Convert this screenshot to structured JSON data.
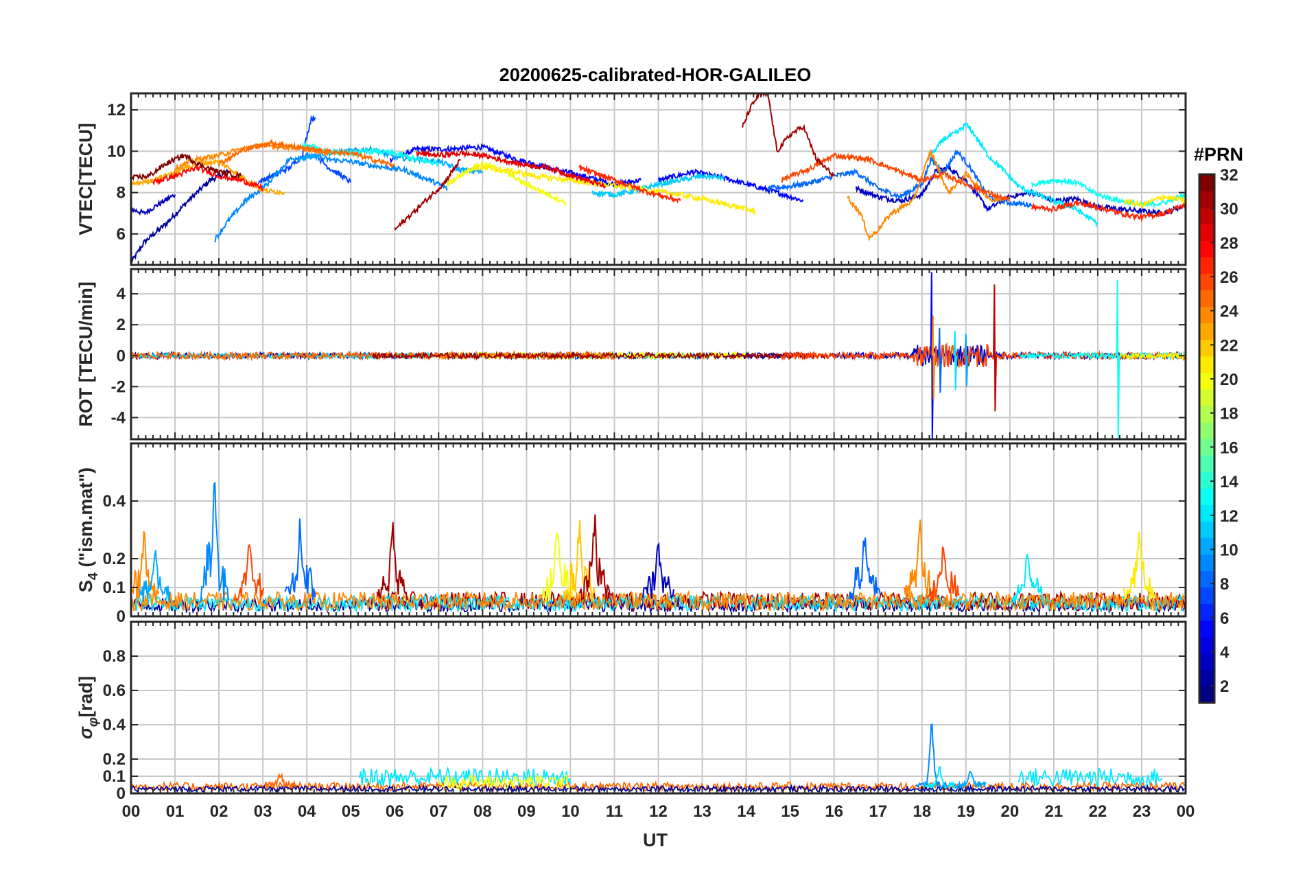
{
  "title": "20200625-calibrated-HOR-GALILEO",
  "xlabel": "UT",
  "colorbar": {
    "title": "#PRN",
    "ticks": [
      "2",
      "4",
      "6",
      "8",
      "10",
      "12",
      "14",
      "16",
      "18",
      "20",
      "22",
      "24",
      "26",
      "28",
      "30",
      "32"
    ],
    "range": [
      1,
      32
    ],
    "colormap": "jet"
  },
  "chart_data": [
    {
      "type": "line",
      "panel": "VTEC",
      "ylabel": "VTEC[TECU]",
      "ylim": [
        4.5,
        12.8
      ],
      "yticks": [
        6,
        8,
        10,
        12
      ],
      "yticklabels": [
        "6",
        "8",
        "10",
        "12"
      ],
      "xlim": [
        0,
        24
      ],
      "xticklabels": [
        "00",
        "01",
        "02",
        "03",
        "04",
        "05",
        "06",
        "07",
        "08",
        "09",
        "10",
        "11",
        "12",
        "13",
        "14",
        "15",
        "16",
        "17",
        "18",
        "19",
        "20",
        "21",
        "22",
        "23",
        "00"
      ],
      "grid": true,
      "series": [
        {
          "prn": 2,
          "x": [
            0,
            0.3,
            0.8,
            1.3,
            1.8,
            2.2
          ],
          "y": [
            4.6,
            5.6,
            6.5,
            7.6,
            8.6,
            9.0
          ]
        },
        {
          "prn": 3,
          "x": [
            0,
            0.3,
            0.6,
            1.0
          ],
          "y": [
            7.2,
            7.0,
            7.4,
            7.9
          ]
        },
        {
          "prn": 5,
          "x": [
            5.9,
            6.5,
            7.2,
            8.0,
            8.8,
            9.5,
            10.3,
            11.0,
            11.6
          ],
          "y": [
            9.6,
            10.1,
            10.1,
            10.2,
            9.6,
            9.2,
            8.8,
            8.4,
            8.6
          ]
        },
        {
          "prn": 5,
          "x": [
            12.0,
            12.8,
            13.5,
            14.2,
            14.7,
            15.3
          ],
          "y": [
            8.6,
            9.0,
            8.7,
            8.3,
            8.0,
            7.6
          ]
        },
        {
          "prn": 3,
          "x": [
            16.5,
            17.0,
            17.5,
            18.0,
            18.3,
            18.6,
            19.0,
            19.5,
            20.0,
            20.5,
            21.0,
            21.5,
            22.0,
            22.5,
            23.0,
            23.5,
            24.0
          ],
          "y": [
            8.2,
            7.8,
            7.6,
            7.9,
            9.0,
            9.2,
            8.6,
            7.2,
            7.8,
            8.0,
            7.6,
            7.7,
            7.3,
            7.2,
            7.1,
            7.0,
            7.4
          ]
        },
        {
          "prn": 7,
          "x": [
            2.9,
            3.3,
            3.6,
            3.9,
            4.1,
            4.2
          ],
          "y": [
            8.5,
            8.9,
            9.2,
            9.8,
            11.6,
            11.6
          ]
        },
        {
          "prn": 7,
          "x": [
            4.3,
            4.5,
            4.8,
            5.0
          ],
          "y": [
            9.6,
            9.2,
            8.8,
            8.5
          ]
        },
        {
          "prn": 8,
          "x": [
            14.5,
            15.0,
            15.5,
            16.0,
            16.5,
            17.0,
            17.5,
            18.0,
            18.2,
            18.5,
            18.8,
            19.1,
            19.5,
            20.0,
            20.5
          ],
          "y": [
            8.2,
            8.3,
            8.5,
            8.8,
            9.0,
            8.2,
            7.8,
            8.4,
            9.6,
            9.0,
            10.0,
            9.2,
            7.8,
            7.5,
            7.4
          ]
        },
        {
          "prn": 9,
          "x": [
            1.9,
            2.2,
            2.6,
            3.1,
            3.6,
            4.0,
            4.5,
            5.0,
            5.5,
            6.2,
            6.8,
            7.2
          ],
          "y": [
            5.7,
            6.6,
            7.6,
            8.4,
            9.6,
            9.8,
            9.6,
            9.5,
            9.3,
            9.1,
            8.6,
            8.2
          ]
        },
        {
          "prn": 10,
          "x": [
            3.8,
            4.4,
            5.0,
            5.5,
            6.0,
            6.5,
            7.0,
            7.5,
            8.0
          ],
          "y": [
            9.6,
            9.9,
            10.0,
            10.1,
            9.7,
            9.6,
            9.5,
            9.1,
            9.0
          ]
        },
        {
          "prn": 11,
          "x": [
            10.5,
            11.0,
            11.5,
            12.0,
            12.5,
            13.0,
            13.5
          ],
          "y": [
            8.0,
            7.9,
            8.1,
            8.4,
            8.6,
            8.8,
            8.7
          ]
        },
        {
          "prn": 12,
          "x": [
            18.2,
            18.5,
            18.8,
            19.0,
            19.2,
            19.5,
            19.8,
            20.2,
            20.6,
            21.0,
            21.5,
            22.0
          ],
          "y": [
            9.8,
            10.6,
            10.9,
            11.3,
            10.8,
            9.8,
            9.2,
            8.3,
            7.9,
            7.6,
            7.2,
            6.5
          ]
        },
        {
          "prn": 13,
          "x": [
            3.9,
            4.5,
            5.0,
            5.5,
            6.0,
            6.5,
            7.0
          ],
          "y": [
            10.3,
            10.0,
            9.9,
            10.0,
            9.9,
            9.6,
            9.4
          ]
        },
        {
          "prn": 13,
          "x": [
            20.5,
            21.0,
            21.5,
            22.0,
            22.5,
            23.0,
            23.5,
            24.0
          ],
          "y": [
            8.4,
            8.6,
            8.5,
            7.9,
            7.6,
            7.4,
            7.5,
            7.9
          ]
        },
        {
          "prn": 20,
          "x": [
            7.2,
            7.6,
            8.0,
            8.5,
            9.0,
            9.5,
            9.9
          ],
          "y": [
            8.4,
            9.0,
            9.4,
            9.0,
            8.4,
            7.9,
            7.5
          ]
        },
        {
          "prn": 21,
          "x": [
            7.8,
            8.5,
            9.2,
            10.0,
            10.7,
            11.2,
            11.8,
            12.5,
            13.2,
            13.8,
            14.2
          ],
          "y": [
            9.2,
            9.1,
            8.8,
            8.6,
            8.4,
            8.3,
            8.1,
            7.9,
            7.6,
            7.3,
            7.1
          ]
        },
        {
          "prn": 21,
          "x": [
            22.6,
            23.0,
            23.5,
            24.0
          ],
          "y": [
            7.6,
            7.4,
            7.8,
            7.6
          ]
        },
        {
          "prn": 23,
          "x": [
            0,
            0.5,
            1.0,
            1.5,
            2.0,
            2.5,
            3.0,
            3.5
          ],
          "y": [
            8.4,
            8.6,
            9.0,
            9.4,
            9.5,
            8.8,
            8.1,
            8.0
          ]
        },
        {
          "prn": 24,
          "x": [
            1.0,
            1.5,
            2.0,
            2.5,
            3.0,
            3.5,
            4.0,
            4.5
          ],
          "y": [
            9.2,
            9.6,
            9.8,
            10.1,
            10.3,
            10.2,
            10.1,
            9.9
          ]
        },
        {
          "prn": 24,
          "x": [
            16.3,
            16.6,
            16.8,
            17.0,
            17.3,
            17.8,
            18.2,
            18.6,
            19.0,
            19.6,
            20.0
          ],
          "y": [
            7.8,
            7.0,
            5.8,
            6.2,
            7.0,
            7.6,
            10.0,
            8.0,
            8.9,
            7.6,
            7.8
          ]
        },
        {
          "prn": 25,
          "x": [
            2.0,
            2.6,
            3.2,
            3.8,
            4.4,
            5.0,
            5.5,
            6.0
          ],
          "y": [
            9.4,
            10.1,
            10.4,
            10.2,
            10.0,
            9.9,
            9.6,
            9.3
          ]
        },
        {
          "prn": 26,
          "x": [
            14.8,
            15.5,
            16.0,
            16.8,
            17.5,
            18.0,
            18.5,
            19.0,
            19.5,
            20.0
          ],
          "y": [
            8.6,
            9.2,
            9.8,
            9.6,
            9.0,
            8.6,
            8.9,
            8.4,
            8.0,
            7.6
          ]
        },
        {
          "prn": 27,
          "x": [
            10.2,
            11.0,
            11.8,
            12.5
          ],
          "y": [
            9.2,
            8.6,
            8.0,
            7.6
          ]
        },
        {
          "prn": 27,
          "x": [
            20.5,
            21.0,
            21.5,
            22.0,
            22.5,
            23.0,
            23.5,
            24.0
          ],
          "y": [
            7.3,
            7.2,
            7.5,
            7.3,
            7.0,
            6.8,
            7.0,
            7.4
          ]
        },
        {
          "prn": 28,
          "x": [
            0.5,
            1.0,
            1.5,
            2.0,
            2.5,
            3.0
          ],
          "y": [
            8.5,
            8.8,
            9.2,
            8.8,
            8.6,
            8.2
          ]
        },
        {
          "prn": 29,
          "x": [
            6.5,
            7.0,
            7.5,
            8.0,
            8.8,
            9.5,
            10.2,
            10.8
          ],
          "y": [
            9.9,
            9.8,
            9.9,
            9.8,
            9.4,
            9.2,
            8.7,
            8.3
          ]
        },
        {
          "prn": 31,
          "x": [
            6.0,
            6.3,
            6.7,
            7.1,
            7.5
          ],
          "y": [
            6.2,
            6.8,
            7.6,
            8.4,
            9.6
          ]
        },
        {
          "prn": 31,
          "x": [
            13.9,
            14.1,
            14.3,
            14.5,
            14.7,
            15.0,
            15.3,
            15.6,
            16.0
          ],
          "y": [
            11.1,
            12.1,
            12.8,
            12.7,
            10.0,
            10.8,
            11.2,
            9.6,
            8.8
          ]
        },
        {
          "prn": 32,
          "x": [
            0,
            0.4,
            0.8,
            1.2,
            1.6,
            2.0,
            2.5
          ],
          "y": [
            8.7,
            8.8,
            9.4,
            9.8,
            9.3,
            9.0,
            8.8
          ]
        }
      ]
    },
    {
      "type": "line",
      "panel": "ROT",
      "ylabel": "ROT [TECU/min]",
      "ylim": [
        -5.4,
        5.6
      ],
      "yticks": [
        -4,
        -2,
        0,
        2,
        4
      ],
      "yticklabels": [
        "-4",
        "-2",
        "0",
        "2",
        "4"
      ],
      "xlim": [
        0,
        24
      ],
      "grid": true,
      "noise": [
        {
          "prn": 2,
          "segments": [
            [
              0,
              15.3
            ]
          ],
          "amp": 0.18
        },
        {
          "prn": 12,
          "segments": [
            [
              0.2,
              13.0
            ]
          ],
          "amp": 0.15
        },
        {
          "prn": 20,
          "segments": [
            [
              7.0,
              14.0
            ]
          ],
          "amp": 0.2
        },
        {
          "prn": 25,
          "segments": [
            [
              0,
              11.0
            ]
          ],
          "amp": 0.22
        },
        {
          "prn": 31,
          "segments": [
            [
              5.5,
              16.0
            ]
          ],
          "amp": 0.17
        },
        {
          "prn": 3,
          "segments": [
            [
              16.0,
              24.0
            ]
          ],
          "amp": 0.2
        },
        {
          "prn": 26,
          "segments": [
            [
              14.8,
              24.0
            ]
          ],
          "amp": 0.22
        },
        {
          "prn": 13,
          "segments": [
            [
              20.2,
              24.0
            ]
          ],
          "amp": 0.2
        },
        {
          "prn": 21,
          "segments": [
            [
              22.5,
              24.0
            ]
          ],
          "amp": 0.2
        }
      ],
      "events": [
        {
          "prn": 5,
          "t": 18.22,
          "values": [
            5.4,
            -5.4
          ]
        },
        {
          "prn": 24,
          "t": 18.25,
          "values": [
            2.6,
            -2.8
          ]
        },
        {
          "prn": 8,
          "t": 18.4,
          "values": [
            1.8,
            -2.4
          ]
        },
        {
          "prn": 12,
          "t": 18.75,
          "values": [
            1.6,
            -2.2
          ]
        },
        {
          "prn": 10,
          "t": 19.0,
          "values": [
            1.4,
            -2.0
          ]
        },
        {
          "prn": 30,
          "t": 19.65,
          "values": [
            4.6,
            -3.6
          ]
        },
        {
          "prn": 13,
          "t": 22.45,
          "values": [
            4.9,
            -5.4
          ]
        }
      ]
    },
    {
      "type": "line",
      "panel": "S4",
      "ylabel": "S4 (\"ism.mat\")",
      "ylabel_main": "S",
      "ylabel_sub": "4",
      "ylabel_rest": " (\"ism.mat\")",
      "ylim": [
        0,
        0.6
      ],
      "yticks": [
        0,
        0.1,
        0.2,
        0.4
      ],
      "yticklabels": [
        "0",
        "0.1",
        "0.2",
        "0.4"
      ],
      "xlim": [
        0,
        24
      ],
      "grid": true,
      "spikes": [
        {
          "prn": 9,
          "t": 1.9,
          "peak": 0.48
        },
        {
          "prn": 24,
          "t": 0.3,
          "peak": 0.27
        },
        {
          "prn": 10,
          "t": 0.55,
          "peak": 0.2
        },
        {
          "prn": 26,
          "t": 2.7,
          "peak": 0.24
        },
        {
          "prn": 8,
          "t": 3.85,
          "peak": 0.31
        },
        {
          "prn": 31,
          "t": 5.95,
          "peak": 0.3
        },
        {
          "prn": 20,
          "t": 9.7,
          "peak": 0.3
        },
        {
          "prn": 22,
          "t": 10.2,
          "peak": 0.3
        },
        {
          "prn": 31,
          "t": 10.55,
          "peak": 0.34
        },
        {
          "prn": 3,
          "t": 12.0,
          "peak": 0.25
        },
        {
          "prn": 8,
          "t": 16.7,
          "peak": 0.27
        },
        {
          "prn": 24,
          "t": 17.95,
          "peak": 0.31
        },
        {
          "prn": 26,
          "t": 18.5,
          "peak": 0.24
        },
        {
          "prn": 21,
          "t": 22.95,
          "peak": 0.32
        },
        {
          "prn": 12,
          "t": 20.4,
          "peak": 0.19
        }
      ],
      "baselines": [
        {
          "prn": 2,
          "segments": [
            [
              0,
              24
            ]
          ],
          "level": 0.03
        },
        {
          "prn": 31,
          "segments": [
            [
              5.5,
              24
            ]
          ],
          "level": 0.04
        },
        {
          "prn": 12,
          "segments": [
            [
              0,
              24
            ]
          ],
          "level": 0.035
        },
        {
          "prn": 24,
          "segments": [
            [
              0,
              24
            ]
          ],
          "level": 0.04
        }
      ]
    },
    {
      "type": "line",
      "panel": "sigma_phi",
      "ylabel": "σφ[rad]",
      "ylabel_main": "σ",
      "ylabel_sub": "φ",
      "ylabel_rest": "[rad]",
      "ylim": [
        0,
        1.0
      ],
      "yticks": [
        0,
        0.1,
        0.2,
        0.4,
        0.6,
        0.8
      ],
      "yticklabels": [
        "0",
        "0.1",
        "0.2",
        "0.4",
        "0.6",
        "0.8"
      ],
      "xlim": [
        0,
        24
      ],
      "grid": true,
      "spikes": [
        {
          "prn": 9,
          "t": 18.22,
          "peak": 0.41
        },
        {
          "prn": 12,
          "t": 18.4,
          "peak": 0.13
        },
        {
          "prn": 10,
          "t": 19.1,
          "peak": 0.13
        },
        {
          "prn": 25,
          "t": 3.4,
          "peak": 0.1
        }
      ],
      "baselines": [
        {
          "prn": 12,
          "segments": [
            [
              5.2,
              10.0
            ],
            [
              20.2,
              23.5
            ]
          ],
          "level": 0.07
        },
        {
          "prn": 25,
          "segments": [
            [
              0,
              24
            ]
          ],
          "level": 0.03
        },
        {
          "prn": 2,
          "segments": [
            [
              0,
              24
            ]
          ],
          "level": 0.02
        },
        {
          "prn": 20,
          "segments": [
            [
              7.0,
              10.0
            ]
          ],
          "level": 0.05
        }
      ]
    }
  ]
}
